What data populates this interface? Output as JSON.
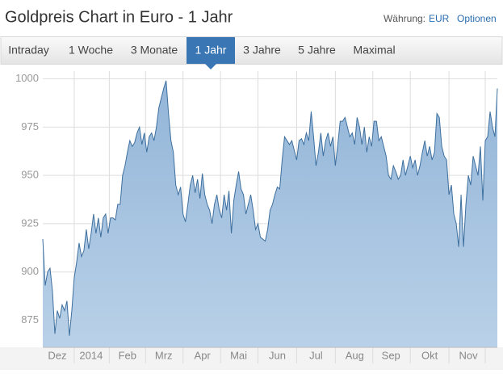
{
  "header": {
    "title": "Goldpreis Chart in Euro - 1 Jahr",
    "currency_label": "Währung:",
    "currency": "EUR",
    "options": "Optionen"
  },
  "tabs": [
    "Intraday",
    "1 Woche",
    "3 Monate",
    "1 Jahr",
    "3 Jahre",
    "5 Jahre",
    "Maximal"
  ],
  "active_tab": 3,
  "chart_data": {
    "type": "area",
    "color": "#3d6f9e",
    "ylim": [
      861,
      1004
    ],
    "yticks": [
      875,
      900,
      925,
      950,
      975,
      1000
    ],
    "grid": true,
    "categories": [
      null,
      null,
      null,
      null,
      null,
      null,
      "Dez",
      null,
      null,
      null,
      null,
      null,
      null,
      null,
      null,
      null,
      null,
      null,
      null,
      null,
      "2014",
      null,
      null,
      null,
      null,
      null,
      null,
      null,
      null,
      null,
      null,
      null,
      null,
      null,
      null,
      "Feb",
      null,
      null,
      null,
      null,
      null,
      null,
      null,
      null,
      null,
      null,
      null,
      null,
      null,
      null,
      "Mrz",
      null,
      null,
      null,
      null,
      null,
      null,
      null,
      null,
      null,
      null,
      null,
      null,
      null,
      null,
      null,
      "Apr",
      null,
      null,
      null,
      null,
      null,
      null,
      null,
      null,
      null,
      null,
      null,
      null,
      null,
      null,
      "Mai",
      null,
      null,
      null,
      null,
      null,
      null,
      null,
      null,
      null,
      null,
      null,
      null,
      null,
      null,
      null,
      "Jun",
      null,
      null,
      null,
      null,
      null,
      null,
      null,
      null,
      null,
      null,
      null,
      null,
      null,
      null,
      null,
      "Jul",
      null,
      null,
      null,
      null,
      null,
      null,
      null,
      null,
      null,
      null,
      null,
      null,
      null,
      null,
      null,
      "Aug",
      null,
      null,
      null,
      null,
      null,
      null,
      null,
      null,
      null,
      null,
      null,
      null,
      null,
      null,
      "Sep",
      null,
      null,
      null,
      null,
      null,
      null,
      null,
      null,
      null,
      null,
      null,
      null,
      null,
      null,
      null,
      "Okt",
      null,
      null,
      null,
      null,
      null,
      null,
      null,
      null,
      null,
      null,
      null,
      null,
      null,
      null,
      null,
      "Nov",
      null,
      null,
      null,
      null,
      null,
      null,
      null,
      null,
      null,
      null,
      null,
      null
    ],
    "values": [
      917,
      893,
      900,
      902,
      890,
      868,
      880,
      876,
      883,
      880,
      885,
      867,
      880,
      897,
      905,
      915,
      908,
      911,
      922,
      912,
      920,
      930,
      920,
      928,
      918,
      928,
      930,
      920,
      928,
      928,
      927,
      935,
      935,
      950,
      955,
      962,
      968,
      965,
      967,
      972,
      975,
      966,
      972,
      962,
      970,
      972,
      968,
      975,
      985,
      990,
      995,
      999,
      982,
      968,
      962,
      945,
      940,
      944,
      930,
      926,
      935,
      945,
      950,
      941,
      948,
      938,
      951,
      940,
      935,
      932,
      925,
      935,
      940,
      932,
      928,
      940,
      932,
      942,
      920,
      937,
      945,
      952,
      943,
      940,
      930,
      935,
      940,
      932,
      922,
      925,
      918,
      917,
      916,
      922,
      932,
      935,
      940,
      944,
      943,
      958,
      970,
      968,
      966,
      968,
      963,
      958,
      968,
      969,
      966,
      972,
      968,
      983,
      970,
      955,
      962,
      972,
      960,
      968,
      972,
      965,
      970,
      955,
      966,
      978,
      978,
      980,
      975,
      970,
      972,
      966,
      980,
      975,
      966,
      975,
      962,
      970,
      965,
      978,
      978,
      968,
      970,
      965,
      960,
      950,
      948,
      955,
      952,
      948,
      950,
      958,
      950,
      955,
      960,
      954,
      958,
      950,
      955,
      962,
      968,
      960,
      965,
      958,
      962,
      982,
      980,
      965,
      960,
      958,
      940,
      945,
      930,
      925,
      913,
      940,
      913,
      935,
      950,
      945,
      960,
      955,
      950,
      965,
      937,
      968,
      970,
      983,
      975,
      970,
      995
    ]
  }
}
